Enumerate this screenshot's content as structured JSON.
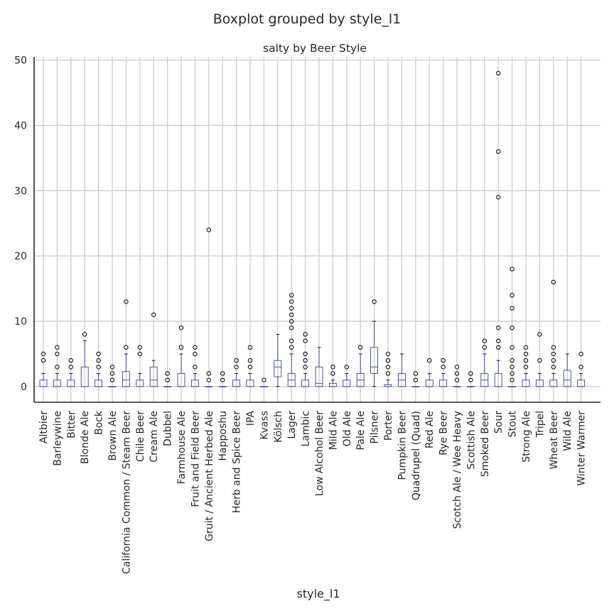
{
  "chart_data": {
    "type": "box",
    "suptitle": "Boxplot grouped by style_l1",
    "title": "salty by Beer Style",
    "xlabel": "style_l1",
    "ylabel": "",
    "ylim": [
      -2.4,
      50.5
    ],
    "yticks": [
      0,
      10,
      20,
      30,
      40,
      50
    ],
    "grid": true,
    "categories": [
      "Altbier",
      "Barleywine",
      "Bitter",
      "Blonde Ale",
      "Bock",
      "Brown Ale",
      "California Common / Steam Beer",
      "Chile Beer",
      "Cream Ale",
      "Dubbel",
      "Farmhouse Ale",
      "Fruit and Field Beer",
      "Gruit / Ancient Herbed Ale",
      "Happoshu",
      "Herb and Spice Beer",
      "IPA",
      "Kvass",
      "Kölsch",
      "Lager",
      "Lambic",
      "Low Alcohol Beer",
      "Mild Ale",
      "Old Ale",
      "Pale Ale",
      "Pilsner",
      "Porter",
      "Pumpkin Beer",
      "Quadrupel (Quad)",
      "Red Ale",
      "Rye Beer",
      "Scotch Ale / Wee Heavy",
      "Scottish Ale",
      "Smoked Beer",
      "Sour",
      "Stout",
      "Strong Ale",
      "Tripel",
      "Wheat Beer",
      "Wild Ale",
      "Winter Warmer"
    ],
    "boxes": [
      {
        "whislo": 0,
        "q1": 0,
        "med": 0,
        "q3": 1,
        "whishi": 2,
        "fliers": [
          4,
          5
        ]
      },
      {
        "whislo": 0,
        "q1": 0,
        "med": 0,
        "q3": 1,
        "whishi": 2,
        "fliers": [
          3,
          5,
          6
        ]
      },
      {
        "whislo": 0,
        "q1": 0,
        "med": 0,
        "q3": 1,
        "whishi": 2,
        "fliers": [
          3,
          4
        ]
      },
      {
        "whislo": 0,
        "q1": 0,
        "med": 0,
        "q3": 3,
        "whishi": 7,
        "fliers": [
          8
        ]
      },
      {
        "whislo": 0,
        "q1": 0,
        "med": 0,
        "q3": 1,
        "whishi": 2,
        "fliers": [
          3,
          4,
          5
        ]
      },
      {
        "whislo": 0,
        "q1": 0,
        "med": 0,
        "q3": 0,
        "whishi": 0,
        "fliers": [
          1,
          2,
          3
        ]
      },
      {
        "whislo": 0,
        "q1": 0,
        "med": 1,
        "q3": 2.3,
        "whishi": 5,
        "fliers": [
          6,
          13
        ]
      },
      {
        "whislo": 0,
        "q1": 0,
        "med": 0,
        "q3": 1,
        "whishi": 2,
        "fliers": [
          5,
          6
        ]
      },
      {
        "whislo": 0,
        "q1": 0,
        "med": 1,
        "q3": 3,
        "whishi": 4,
        "fliers": [
          11
        ]
      },
      {
        "whislo": 0,
        "q1": 0,
        "med": 0,
        "q3": 0,
        "whishi": 0,
        "fliers": [
          1,
          2
        ]
      },
      {
        "whislo": 0,
        "q1": 0,
        "med": 0,
        "q3": 2,
        "whishi": 5,
        "fliers": [
          6,
          9
        ]
      },
      {
        "whislo": 0,
        "q1": 0,
        "med": 0,
        "q3": 1,
        "whishi": 2,
        "fliers": [
          3,
          5,
          6
        ]
      },
      {
        "whislo": 0,
        "q1": 0,
        "med": 0,
        "q3": 0,
        "whishi": 0,
        "fliers": [
          1,
          2,
          24
        ]
      },
      {
        "whislo": 0,
        "q1": 0,
        "med": 0,
        "q3": 0,
        "whishi": 0,
        "fliers": [
          1,
          2
        ]
      },
      {
        "whislo": 0,
        "q1": 0,
        "med": 0,
        "q3": 1,
        "whishi": 2,
        "fliers": [
          3,
          4
        ]
      },
      {
        "whislo": 0,
        "q1": 0,
        "med": 0,
        "q3": 1,
        "whishi": 2,
        "fliers": [
          3,
          4,
          6
        ]
      },
      {
        "whislo": 0,
        "q1": 0,
        "med": 0,
        "q3": 0,
        "whishi": 0,
        "fliers": [
          1
        ]
      },
      {
        "whislo": 0,
        "q1": 1.5,
        "med": 3,
        "q3": 4,
        "whishi": 8,
        "fliers": []
      },
      {
        "whislo": 0,
        "q1": 0,
        "med": 1,
        "q3": 2,
        "whishi": 5,
        "fliers": [
          6,
          7,
          9,
          10,
          11,
          12,
          13,
          14
        ]
      },
      {
        "whislo": 0,
        "q1": 0,
        "med": 0,
        "q3": 1,
        "whishi": 2,
        "fliers": [
          3,
          4,
          5,
          7,
          8
        ]
      },
      {
        "whislo": 0,
        "q1": 0,
        "med": 0.5,
        "q3": 3,
        "whishi": 6,
        "fliers": []
      },
      {
        "whislo": 0,
        "q1": 0,
        "med": 0,
        "q3": 0.5,
        "whishi": 1,
        "fliers": [
          2,
          3
        ]
      },
      {
        "whislo": 0,
        "q1": 0,
        "med": 0,
        "q3": 1,
        "whishi": 2,
        "fliers": [
          3
        ]
      },
      {
        "whislo": 0,
        "q1": 0,
        "med": 1,
        "q3": 2,
        "whishi": 5,
        "fliers": [
          6
        ]
      },
      {
        "whislo": 0,
        "q1": 2,
        "med": 3,
        "q3": 6,
        "whishi": 10,
        "fliers": [
          13
        ]
      },
      {
        "whislo": 0,
        "q1": 0,
        "med": 0,
        "q3": 0.3,
        "whishi": 1,
        "fliers": [
          2,
          3,
          4,
          5
        ]
      },
      {
        "whislo": 0,
        "q1": 0,
        "med": 1,
        "q3": 2,
        "whishi": 5,
        "fliers": []
      },
      {
        "whislo": 0,
        "q1": 0,
        "med": 0,
        "q3": 0,
        "whishi": 0,
        "fliers": [
          1,
          2
        ]
      },
      {
        "whislo": 0,
        "q1": 0,
        "med": 0,
        "q3": 1,
        "whishi": 2,
        "fliers": [
          4
        ]
      },
      {
        "whislo": 0,
        "q1": 0,
        "med": 0,
        "q3": 1,
        "whishi": 2,
        "fliers": [
          3,
          4
        ]
      },
      {
        "whislo": 0,
        "q1": 0,
        "med": 0,
        "q3": 0,
        "whishi": 0,
        "fliers": [
          1,
          2,
          3
        ]
      },
      {
        "whislo": 0,
        "q1": 0,
        "med": 0,
        "q3": 0,
        "whishi": 0,
        "fliers": [
          1,
          2
        ]
      },
      {
        "whislo": 0,
        "q1": 0,
        "med": 1,
        "q3": 2,
        "whishi": 5,
        "fliers": [
          6,
          7
        ]
      },
      {
        "whislo": 0,
        "q1": 0,
        "med": 0,
        "q3": 2,
        "whishi": 4,
        "fliers": [
          6,
          7,
          9,
          29,
          36,
          48
        ]
      },
      {
        "whislo": 0,
        "q1": 0,
        "med": 0,
        "q3": 0,
        "whishi": 0,
        "fliers": [
          1,
          2,
          3,
          4,
          6,
          9,
          12,
          14,
          18
        ]
      },
      {
        "whislo": 0,
        "q1": 0,
        "med": 0,
        "q3": 1,
        "whishi": 2,
        "fliers": [
          3,
          4,
          5,
          6
        ]
      },
      {
        "whislo": 0,
        "q1": 0,
        "med": 0,
        "q3": 1,
        "whishi": 2,
        "fliers": [
          4,
          8
        ]
      },
      {
        "whislo": 0,
        "q1": 0,
        "med": 0,
        "q3": 1,
        "whishi": 2,
        "fliers": [
          3,
          4,
          5,
          6,
          16
        ]
      },
      {
        "whislo": 0,
        "q1": 0,
        "med": 1,
        "q3": 2.5,
        "whishi": 5,
        "fliers": []
      },
      {
        "whislo": 0,
        "q1": 0,
        "med": 0,
        "q3": 1,
        "whishi": 2,
        "fliers": [
          3,
          5
        ]
      }
    ],
    "colors": {
      "box": "#3b4386",
      "median": "#3b4386",
      "grid": "#cccccc",
      "axis": "#262626",
      "flier_edge": "#000000"
    }
  }
}
